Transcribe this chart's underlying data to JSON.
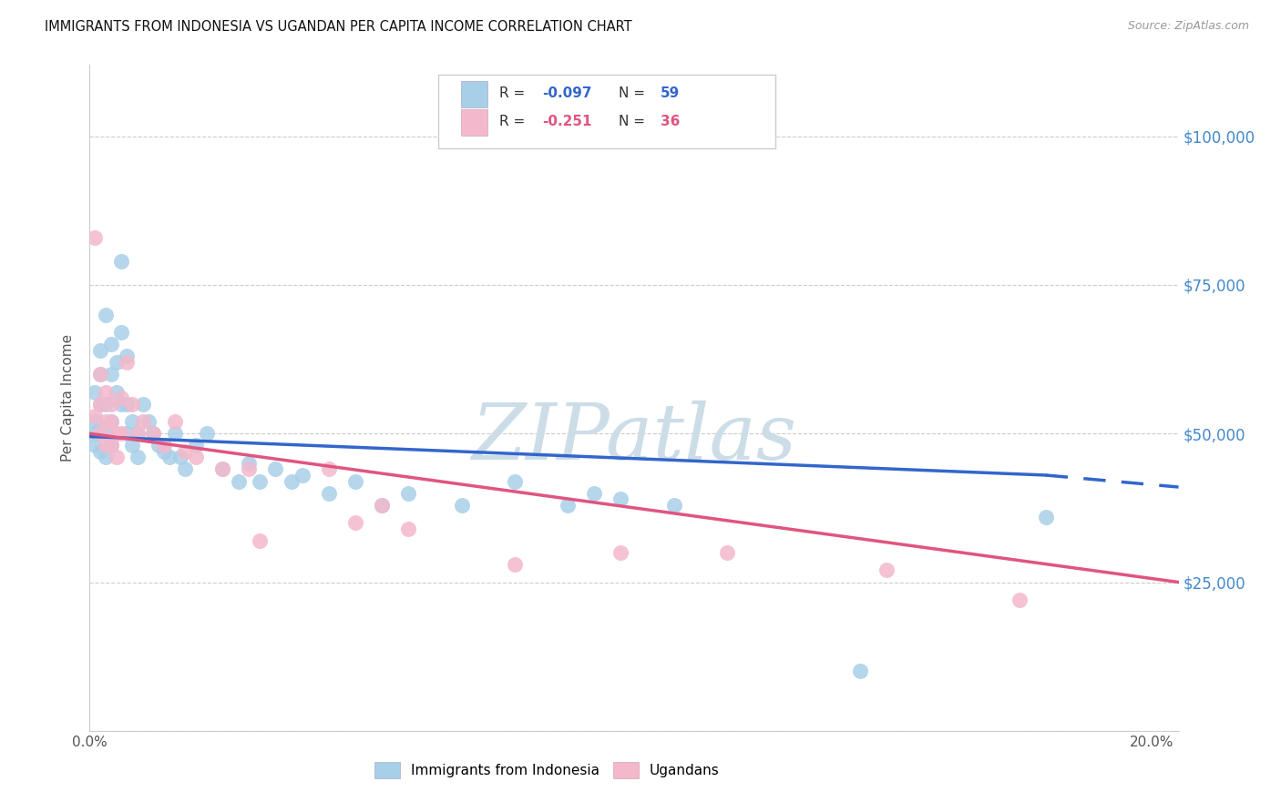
{
  "title": "IMMIGRANTS FROM INDONESIA VS UGANDAN PER CAPITA INCOME CORRELATION CHART",
  "source": "Source: ZipAtlas.com",
  "ylabel": "Per Capita Income",
  "xlim": [
    0.0,
    0.205
  ],
  "ylim": [
    0,
    112000
  ],
  "yticks": [
    0,
    25000,
    50000,
    75000,
    100000
  ],
  "ytick_labels_right": [
    "",
    "$25,000",
    "$50,000",
    "$75,000",
    "$100,000"
  ],
  "xticks": [
    0.0,
    0.025,
    0.05,
    0.075,
    0.1,
    0.125,
    0.15,
    0.175,
    0.2
  ],
  "xtick_labels": [
    "0.0%",
    "",
    "",
    "",
    "",
    "",
    "",
    "",
    "20.0%"
  ],
  "blue_label": "Immigrants from Indonesia",
  "pink_label": "Ugandans",
  "blue_scatter_color": "#a8cfe8",
  "pink_scatter_color": "#f4b8cc",
  "blue_line_color": "#3366cc",
  "pink_line_color": "#e05580",
  "watermark_color": "#ccdde8",
  "background_color": "#ffffff",
  "title_color": "#111111",
  "source_color": "#999999",
  "axis_label_color": "#555555",
  "grid_color": "#cccccc",
  "right_yaxis_color": "#4488cc",
  "blue_x": [
    0.001,
    0.001,
    0.001,
    0.001,
    0.002,
    0.002,
    0.002,
    0.002,
    0.002,
    0.003,
    0.003,
    0.003,
    0.003,
    0.004,
    0.004,
    0.004,
    0.004,
    0.005,
    0.005,
    0.006,
    0.006,
    0.006,
    0.007,
    0.007,
    0.007,
    0.008,
    0.008,
    0.009,
    0.009,
    0.01,
    0.011,
    0.012,
    0.013,
    0.014,
    0.015,
    0.016,
    0.017,
    0.018,
    0.02,
    0.022,
    0.025,
    0.028,
    0.03,
    0.032,
    0.035,
    0.038,
    0.04,
    0.045,
    0.05,
    0.055,
    0.06,
    0.07,
    0.08,
    0.09,
    0.095,
    0.1,
    0.11,
    0.145,
    0.18
  ],
  "blue_y": [
    57000,
    52000,
    50000,
    48000,
    64000,
    60000,
    55000,
    51000,
    47000,
    70000,
    55000,
    50000,
    46000,
    65000,
    60000,
    52000,
    48000,
    62000,
    57000,
    79000,
    67000,
    55000,
    63000,
    55000,
    50000,
    52000,
    48000,
    50000,
    46000,
    55000,
    52000,
    50000,
    48000,
    47000,
    46000,
    50000,
    46000,
    44000,
    48000,
    50000,
    44000,
    42000,
    45000,
    42000,
    44000,
    42000,
    43000,
    40000,
    42000,
    38000,
    40000,
    38000,
    42000,
    38000,
    40000,
    39000,
    38000,
    10000,
    36000
  ],
  "pink_x": [
    0.001,
    0.001,
    0.002,
    0.002,
    0.002,
    0.003,
    0.003,
    0.003,
    0.004,
    0.004,
    0.004,
    0.005,
    0.005,
    0.006,
    0.006,
    0.007,
    0.008,
    0.009,
    0.01,
    0.012,
    0.014,
    0.016,
    0.018,
    0.02,
    0.025,
    0.03,
    0.032,
    0.045,
    0.05,
    0.055,
    0.06,
    0.08,
    0.1,
    0.12,
    0.15,
    0.175
  ],
  "pink_y": [
    83000,
    53000,
    60000,
    55000,
    50000,
    57000,
    52000,
    48000,
    55000,
    52000,
    48000,
    50000,
    46000,
    56000,
    50000,
    62000,
    55000,
    50000,
    52000,
    50000,
    48000,
    52000,
    47000,
    46000,
    44000,
    44000,
    32000,
    44000,
    35000,
    38000,
    34000,
    28000,
    30000,
    30000,
    27000,
    22000
  ]
}
